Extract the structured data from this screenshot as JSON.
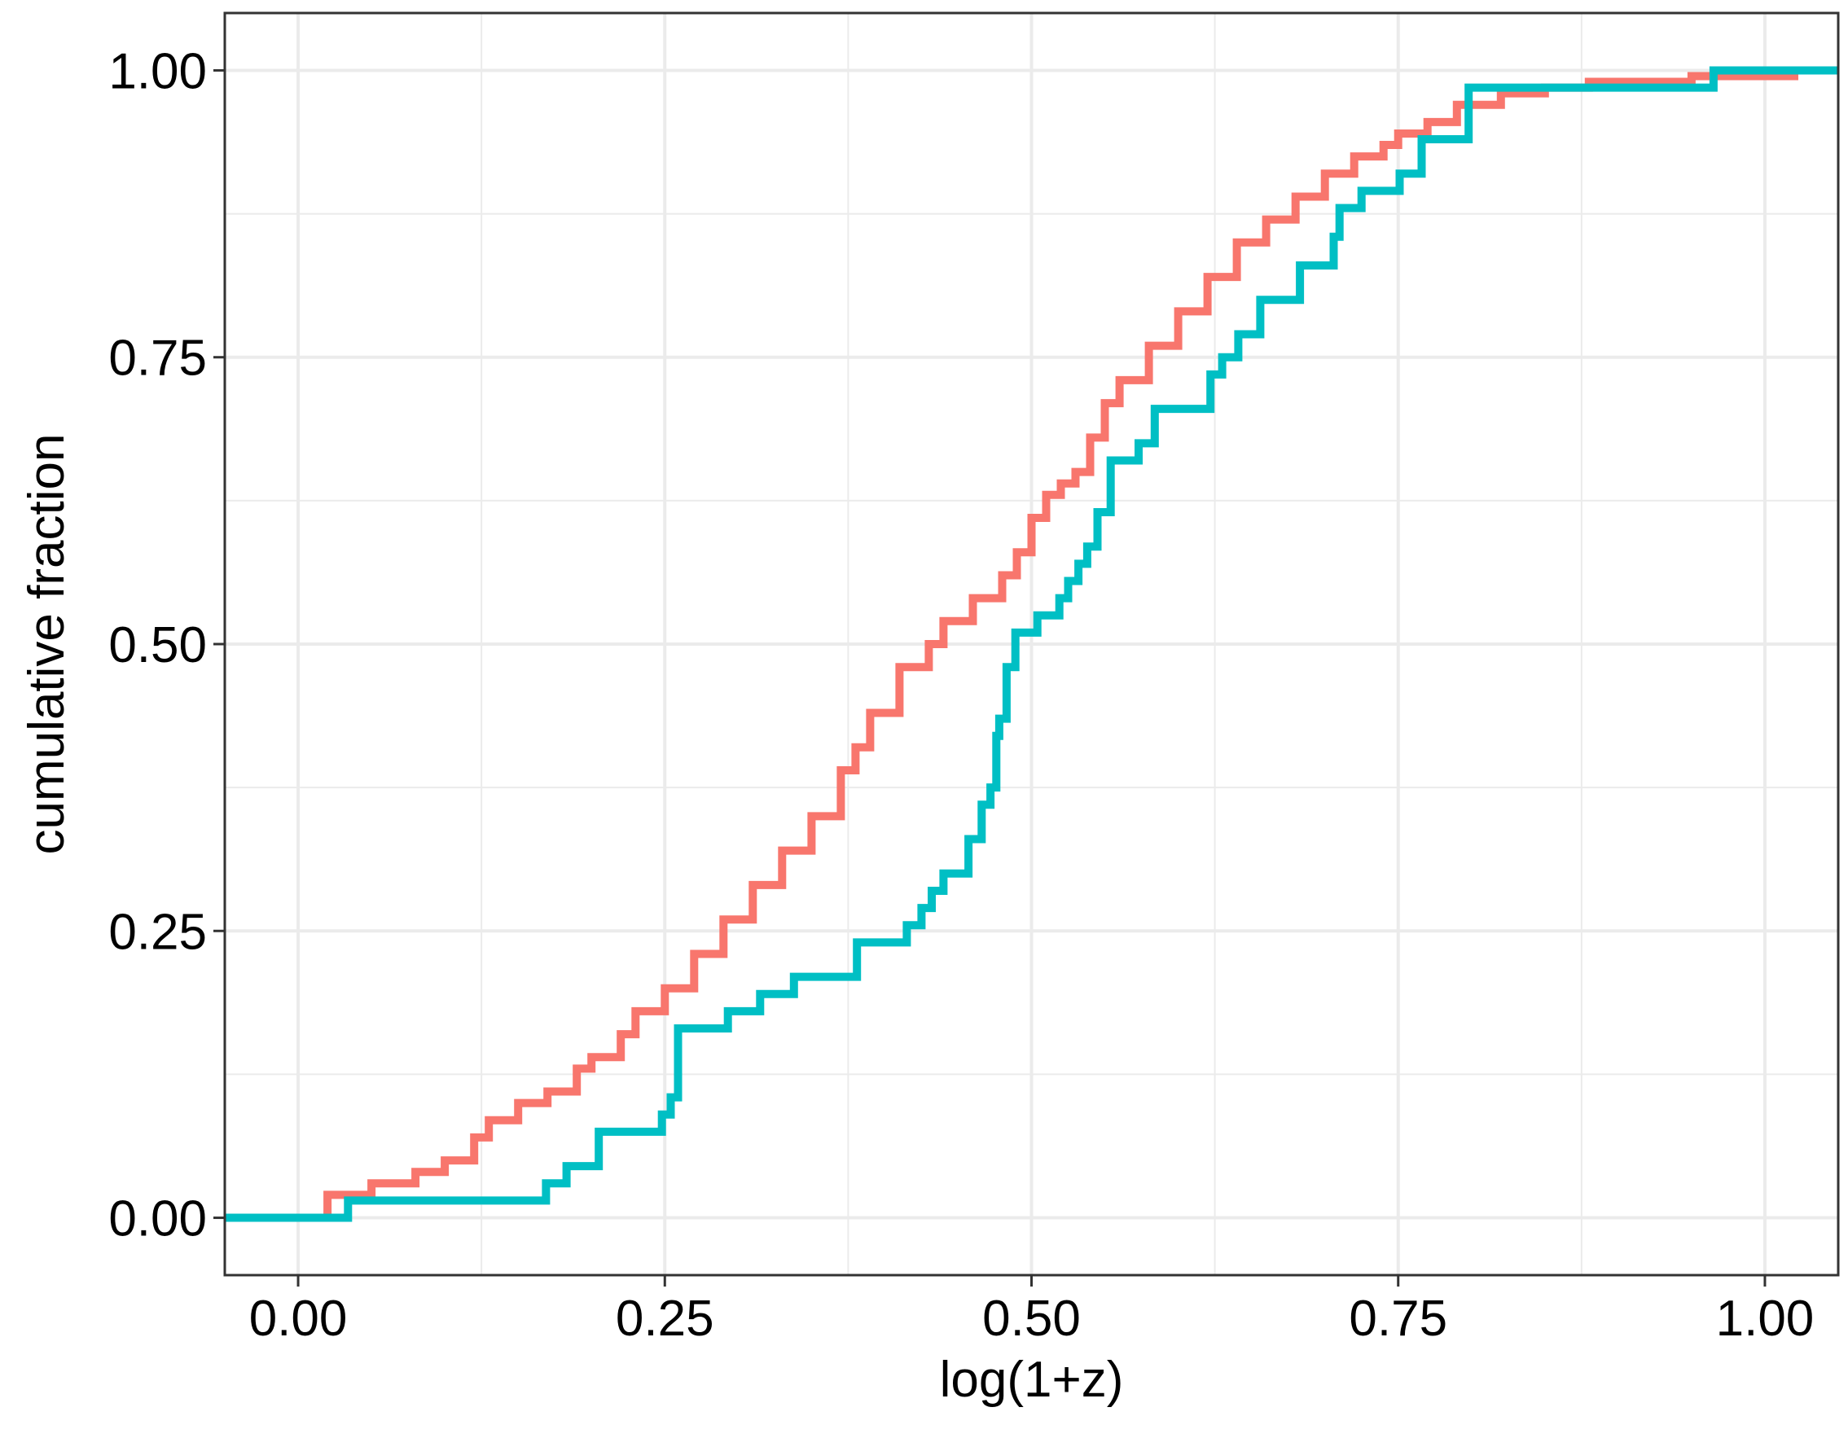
{
  "chart_data": {
    "type": "line",
    "step": true,
    "title": "",
    "xlabel": "log(1+z)",
    "ylabel": "cumulative fraction",
    "xlim": [
      -0.05,
      1.05
    ],
    "ylim": [
      -0.05,
      1.05
    ],
    "xticks": [
      0.0,
      0.25,
      0.5,
      0.75,
      1.0
    ],
    "xtick_labels": [
      "0.00",
      "0.25",
      "0.50",
      "0.75",
      "1.00"
    ],
    "yticks": [
      0.0,
      0.25,
      0.5,
      0.75,
      1.0
    ],
    "ytick_labels": [
      "0.00",
      "0.25",
      "0.50",
      "0.75",
      "1.00"
    ],
    "grid": true,
    "legend": "none",
    "series": [
      {
        "color": "#F8766D",
        "x": [
          0.0,
          0.02,
          0.05,
          0.08,
          0.1,
          0.12,
          0.13,
          0.15,
          0.17,
          0.19,
          0.2,
          0.22,
          0.23,
          0.25,
          0.27,
          0.29,
          0.31,
          0.33,
          0.35,
          0.37,
          0.38,
          0.39,
          0.41,
          0.43,
          0.44,
          0.46,
          0.48,
          0.49,
          0.5,
          0.51,
          0.52,
          0.53,
          0.54,
          0.55,
          0.56,
          0.58,
          0.6,
          0.62,
          0.64,
          0.66,
          0.68,
          0.7,
          0.72,
          0.74,
          0.75,
          0.77,
          0.79,
          0.82,
          0.85,
          0.88,
          0.9,
          0.95,
          1.02
        ],
        "y": [
          0.0,
          0.02,
          0.03,
          0.04,
          0.05,
          0.07,
          0.085,
          0.1,
          0.11,
          0.13,
          0.14,
          0.16,
          0.18,
          0.2,
          0.23,
          0.26,
          0.29,
          0.32,
          0.35,
          0.39,
          0.41,
          0.44,
          0.48,
          0.5,
          0.52,
          0.54,
          0.56,
          0.58,
          0.61,
          0.63,
          0.64,
          0.65,
          0.68,
          0.71,
          0.73,
          0.76,
          0.79,
          0.82,
          0.85,
          0.87,
          0.89,
          0.91,
          0.925,
          0.935,
          0.945,
          0.955,
          0.97,
          0.98,
          0.985,
          0.99,
          0.99,
          0.995,
          1.0
        ]
      },
      {
        "color": "#00BFC4",
        "x": [
          -0.05,
          0.034,
          0.169,
          0.183,
          0.205,
          0.248,
          0.254,
          0.259,
          0.293,
          0.315,
          0.338,
          0.381,
          0.393,
          0.415,
          0.425,
          0.432,
          0.44,
          0.457,
          0.466,
          0.472,
          0.476,
          0.478,
          0.483,
          0.489,
          0.504,
          0.519,
          0.525,
          0.532,
          0.538,
          0.545,
          0.554,
          0.573,
          0.584,
          0.622,
          0.63,
          0.641,
          0.656,
          0.683,
          0.706,
          0.71,
          0.725,
          0.751,
          0.766,
          0.798,
          0.965,
          1.05
        ],
        "y": [
          0.0,
          0.015,
          0.03,
          0.045,
          0.075,
          0.09,
          0.105,
          0.165,
          0.18,
          0.195,
          0.21,
          0.24,
          0.24,
          0.255,
          0.27,
          0.285,
          0.3,
          0.33,
          0.36,
          0.375,
          0.42,
          0.435,
          0.48,
          0.51,
          0.525,
          0.54,
          0.555,
          0.57,
          0.585,
          0.615,
          0.66,
          0.675,
          0.705,
          0.735,
          0.75,
          0.77,
          0.8,
          0.83,
          0.855,
          0.88,
          0.895,
          0.91,
          0.94,
          0.985,
          1.0,
          1.0
        ]
      }
    ]
  }
}
